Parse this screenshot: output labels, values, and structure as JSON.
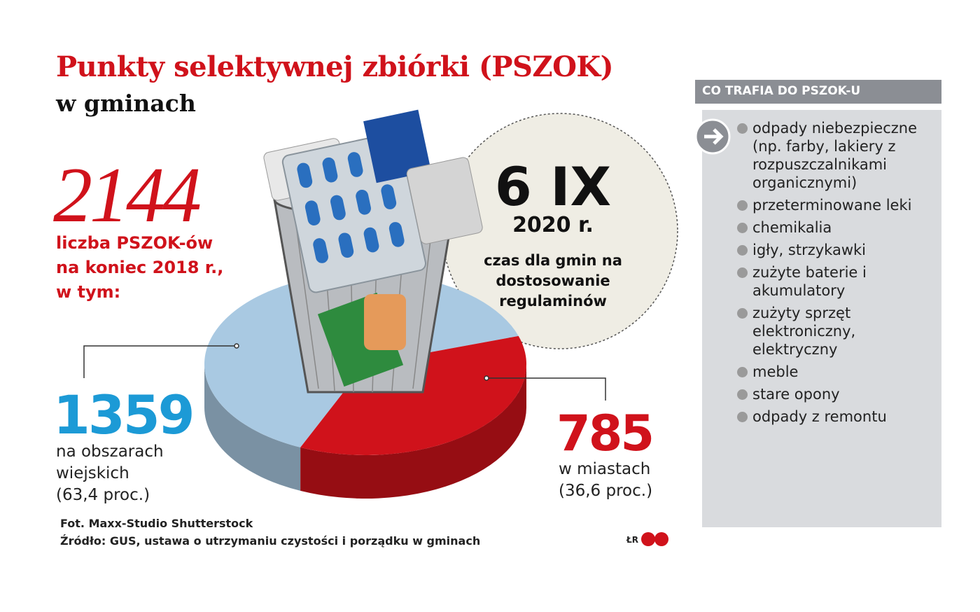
{
  "header": {
    "title": "Punkty selektywnej zbiórki (PSZOK)",
    "subtitle": "w gminach"
  },
  "total": {
    "number": "2144",
    "lines": [
      "liczba PSZOK-ów",
      "na koniec 2018 r.,",
      "w tym:"
    ]
  },
  "chart_data": {
    "type": "pie",
    "categories": [
      "na obszarach wiejskich",
      "w miastach"
    ],
    "values": [
      1359,
      785
    ],
    "colors": [
      "#a9c9e2",
      "#d0121b"
    ],
    "notes": [
      "(63,4 proc.)",
      "(36,6 proc.)"
    ]
  },
  "deadline": {
    "date": "6 IX",
    "year": "2020 r.",
    "text": "czas dla gmin na dostosowanie regulaminów"
  },
  "sidebar": {
    "title": "CO TRAFIA DO PSZOK-U",
    "items": [
      "odpady niebezpieczne (np. farby, lakiery z rozpuszczalnikami organicznymi)",
      "przeterminowane leki",
      "chemikalia",
      "igły, strzykawki",
      "zużyte baterie i akumulatory",
      "zużyty sprzęt elektroniczny, elektryczny",
      "meble",
      "stare opony",
      "odpady z remontu"
    ]
  },
  "footer": {
    "photo": "Fot. Maxx-Studio Shutterstock",
    "source": "Źródło: GUS, ustawa o utrzymaniu czystości i porządku w gminach",
    "credit": "ŁR"
  }
}
